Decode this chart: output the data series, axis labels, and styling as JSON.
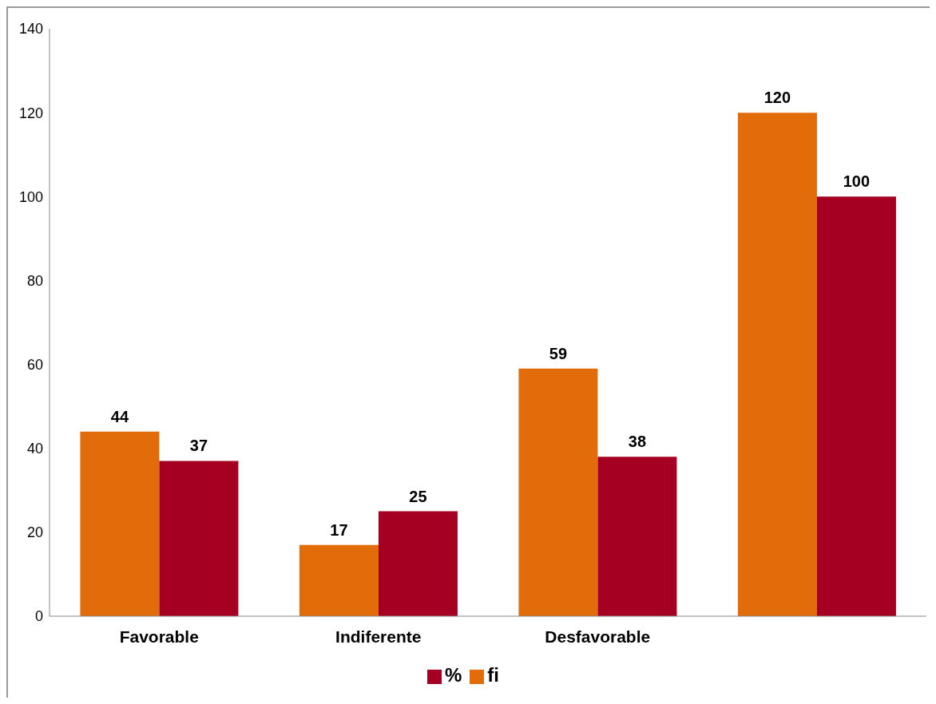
{
  "chart_data": {
    "type": "bar",
    "categories": [
      "Favorable",
      "Indiferente",
      "Desfavorable",
      null
    ],
    "series": [
      {
        "name": "fi",
        "color": "#e36c0a",
        "values": [
          44,
          17,
          59,
          120
        ]
      },
      {
        "name": "%",
        "color": "#a50021",
        "values": [
          37,
          25,
          38,
          100
        ]
      }
    ],
    "ylim": [
      0,
      140
    ],
    "yticks": [
      0,
      20,
      40,
      60,
      80,
      100,
      120,
      140
    ],
    "grid": false,
    "legend": "bottom",
    "data_labels": true
  }
}
